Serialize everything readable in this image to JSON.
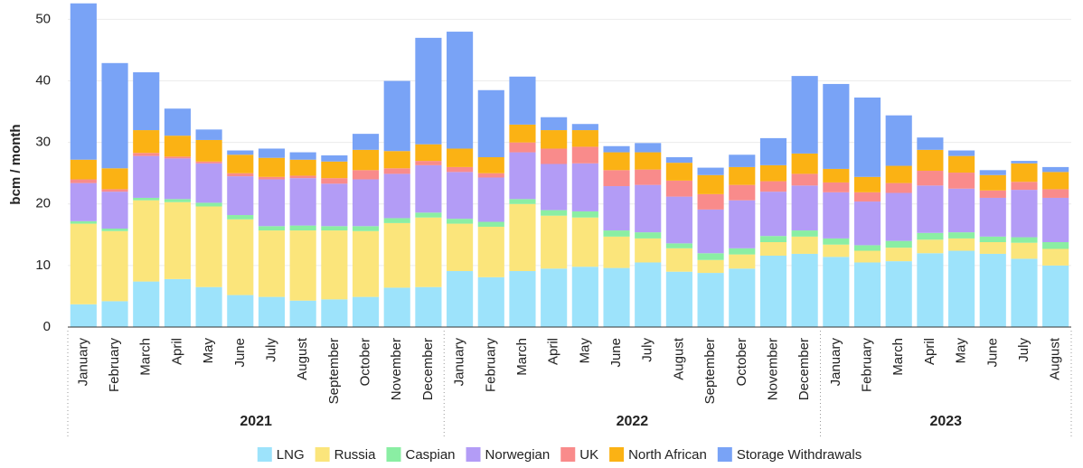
{
  "chart_data": {
    "type": "stacked_bar",
    "y_label": "bcm / month",
    "groups": [
      {
        "name": "2021",
        "categories": [
          "January",
          "February",
          "March",
          "April",
          "May",
          "June",
          "July",
          "August",
          "September",
          "October",
          "November",
          "December"
        ]
      },
      {
        "name": "2022",
        "categories": [
          "January",
          "February",
          "March",
          "April",
          "May",
          "June",
          "July",
          "August",
          "September",
          "October",
          "November",
          "December"
        ]
      },
      {
        "name": "2023",
        "categories": [
          "January",
          "February",
          "March",
          "April",
          "May",
          "June",
          "July",
          "August"
        ]
      }
    ],
    "ylim": [
      0,
      53
    ],
    "yticks": [
      0,
      10,
      20,
      30,
      40,
      50
    ],
    "grid": true,
    "legend": "bottom",
    "series": [
      {
        "name": "LNG",
        "color": "#9de3fb",
        "values": [
          3.7,
          4.2,
          7.4,
          7.8,
          6.5,
          5.2,
          4.9,
          4.3,
          4.5,
          4.9,
          6.4,
          6.5,
          9.1,
          8.1,
          9.1,
          9.5,
          9.8,
          9.6,
          10.5,
          9,
          8.8,
          9.5,
          11.6,
          11.9,
          11.4,
          10.5,
          10.7,
          12,
          12.4,
          11.9,
          11.1,
          10
        ]
      },
      {
        "name": "Russia",
        "color": "#fbe57b",
        "values": [
          13.1,
          11.4,
          13.2,
          12.5,
          13.1,
          12.3,
          10.8,
          11.4,
          11.2,
          10.7,
          10.5,
          11.3,
          7.7,
          8.2,
          10.9,
          8.6,
          8,
          5.1,
          3.9,
          3.8,
          2.1,
          2.3,
          2.2,
          2.8,
          2,
          1.9,
          2.2,
          2.2,
          2,
          1.9,
          2.6,
          2.7
        ]
      },
      {
        "name": "Caspian",
        "color": "#8aeea3",
        "values": [
          0.4,
          0.4,
          0.4,
          0.5,
          0.6,
          0.7,
          0.7,
          0.8,
          0.7,
          0.8,
          0.8,
          0.8,
          0.8,
          0.8,
          0.8,
          0.9,
          1,
          1,
          1,
          0.8,
          1.1,
          1,
          1,
          1,
          1,
          0.9,
          1.1,
          1.1,
          1,
          0.9,
          0.9,
          1.1
        ]
      },
      {
        "name": "Norwegian",
        "color": "#b39cf6",
        "values": [
          6.2,
          6,
          6.8,
          6.6,
          6.4,
          6.3,
          7.6,
          7.7,
          6.9,
          7.6,
          7.2,
          7.7,
          7.6,
          7.2,
          7.6,
          7.5,
          7.8,
          7.2,
          7.7,
          7.6,
          7.1,
          7.8,
          7.2,
          7.3,
          7.5,
          7.1,
          7.8,
          7.7,
          7.1,
          6.3,
          7.7,
          7.2
        ]
      },
      {
        "name": "UK",
        "color": "#f98b8b",
        "values": [
          0.6,
          0.4,
          0.5,
          0.3,
          0.3,
          0.5,
          0.4,
          0.4,
          0.9,
          1.5,
          0.9,
          0.7,
          0.8,
          0.7,
          1.6,
          2.5,
          2.7,
          2.6,
          2.5,
          2.6,
          2.5,
          2.5,
          1.7,
          1.9,
          1.6,
          1.5,
          1.6,
          2.4,
          2.6,
          1.2,
          1.3,
          1.4
        ]
      },
      {
        "name": "North African",
        "color": "#fbb214",
        "values": [
          3.2,
          3.4,
          3.7,
          3.4,
          3.5,
          3,
          3.1,
          2.6,
          2.7,
          3.3,
          2.8,
          2.7,
          3,
          2.6,
          2.9,
          3,
          2.7,
          2.9,
          2.8,
          2.9,
          3.1,
          2.9,
          2.6,
          3.3,
          2.2,
          2.5,
          2.8,
          3.4,
          2.7,
          2.5,
          3,
          2.8
        ]
      },
      {
        "name": "Storage Withdrawals",
        "color": "#79a3f6",
        "values": [
          25.4,
          17.1,
          9.4,
          4.4,
          1.7,
          0.7,
          1.5,
          1.2,
          1,
          2.6,
          11.4,
          17.3,
          19,
          10.9,
          7.8,
          2.1,
          1,
          1,
          1.5,
          0.9,
          1.2,
          2,
          4.4,
          12.6,
          13.8,
          12.9,
          8.2,
          2,
          0.9,
          0.8,
          0.4,
          0.8
        ]
      }
    ]
  }
}
